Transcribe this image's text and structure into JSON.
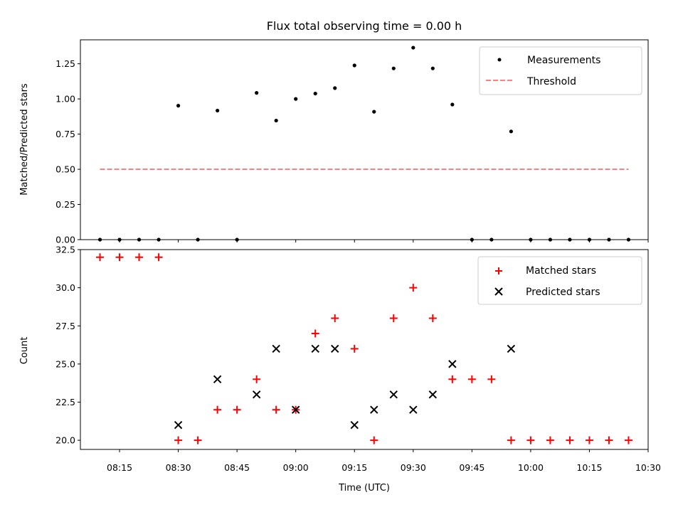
{
  "chart_data": [
    {
      "type": "scatter",
      "title": "Flux total observing time = 0.00 h",
      "xlabel": "",
      "ylabel": "Matched/Predicted stars",
      "xlim": [
        "08:05",
        "10:30"
      ],
      "ylim": [
        0.0,
        1.42
      ],
      "yticks": [
        "0.00",
        "0.25",
        "0.50",
        "0.75",
        "1.00",
        "1.25"
      ],
      "legend_position": "top-right",
      "series": [
        {
          "name": "Measurements",
          "marker": "dot",
          "color": "#000000",
          "points": [
            [
              "08:10",
              0.0
            ],
            [
              "08:15",
              0.0
            ],
            [
              "08:20",
              0.0
            ],
            [
              "08:25",
              0.0
            ],
            [
              "08:30",
              0.952
            ],
            [
              "08:35",
              0.0
            ],
            [
              "08:40",
              0.917
            ],
            [
              "08:45",
              0.0
            ],
            [
              "08:50",
              1.043
            ],
            [
              "08:55",
              0.846
            ],
            [
              "09:00",
              1.0
            ],
            [
              "09:05",
              1.038
            ],
            [
              "09:10",
              1.077
            ],
            [
              "09:15",
              1.238
            ],
            [
              "09:20",
              0.909
            ],
            [
              "09:25",
              1.217
            ],
            [
              "09:30",
              1.364
            ],
            [
              "09:35",
              1.217
            ],
            [
              "09:40",
              0.96
            ],
            [
              "09:45",
              0.0
            ],
            [
              "09:50",
              0.0
            ],
            [
              "09:55",
              0.769
            ],
            [
              "10:00",
              0.0
            ],
            [
              "10:05",
              0.0
            ],
            [
              "10:10",
              0.0
            ],
            [
              "10:15",
              0.0
            ],
            [
              "10:20",
              0.0
            ],
            [
              "10:25",
              0.0
            ]
          ]
        },
        {
          "name": "Threshold",
          "marker": "dashed-line",
          "color": "#ff8080",
          "points": [
            [
              "08:10",
              0.5
            ],
            [
              "10:25",
              0.5
            ]
          ]
        }
      ]
    },
    {
      "type": "scatter",
      "title": "",
      "xlabel": "Time (UTC)",
      "ylabel": "Count",
      "xlim": [
        "08:05",
        "10:30"
      ],
      "ylim": [
        19.4,
        32.5
      ],
      "xticks": [
        "08:15",
        "08:30",
        "08:45",
        "09:00",
        "09:15",
        "09:30",
        "09:45",
        "10:00",
        "10:15",
        "10:30"
      ],
      "yticks": [
        "20.0",
        "22.5",
        "25.0",
        "27.5",
        "30.0",
        "32.5"
      ],
      "legend_position": "top-right",
      "series": [
        {
          "name": "Matched stars",
          "marker": "plus",
          "color": "#ff0000",
          "points": [
            [
              "08:10",
              32
            ],
            [
              "08:15",
              32
            ],
            [
              "08:20",
              32
            ],
            [
              "08:25",
              32
            ],
            [
              "08:30",
              20
            ],
            [
              "08:35",
              20
            ],
            [
              "08:40",
              22
            ],
            [
              "08:45",
              22
            ],
            [
              "08:50",
              24
            ],
            [
              "08:55",
              22
            ],
            [
              "09:00",
              22
            ],
            [
              "09:05",
              27
            ],
            [
              "09:10",
              28
            ],
            [
              "09:15",
              26
            ],
            [
              "09:20",
              20
            ],
            [
              "09:25",
              28
            ],
            [
              "09:30",
              30
            ],
            [
              "09:35",
              28
            ],
            [
              "09:40",
              24
            ],
            [
              "09:45",
              24
            ],
            [
              "09:50",
              24
            ],
            [
              "09:55",
              20
            ],
            [
              "10:00",
              20
            ],
            [
              "10:05",
              20
            ],
            [
              "10:10",
              20
            ],
            [
              "10:15",
              20
            ],
            [
              "10:20",
              20
            ],
            [
              "10:25",
              20
            ]
          ]
        },
        {
          "name": "Predicted stars",
          "marker": "x",
          "color": "#000000",
          "points": [
            [
              "08:30",
              21
            ],
            [
              "08:40",
              24
            ],
            [
              "08:50",
              23
            ],
            [
              "08:55",
              26
            ],
            [
              "09:00",
              22
            ],
            [
              "09:05",
              26
            ],
            [
              "09:10",
              26
            ],
            [
              "09:15",
              21
            ],
            [
              "09:20",
              22
            ],
            [
              "09:25",
              23
            ],
            [
              "09:30",
              22
            ],
            [
              "09:35",
              23
            ],
            [
              "09:40",
              25
            ],
            [
              "09:55",
              26
            ]
          ]
        }
      ]
    }
  ]
}
